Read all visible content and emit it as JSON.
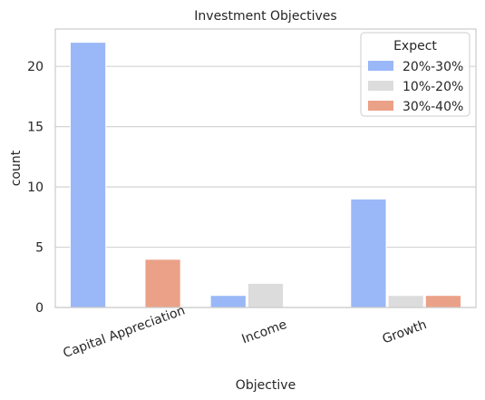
{
  "chart_data": {
    "type": "bar",
    "title": "Investment Objectives",
    "xlabel": "Objective",
    "ylabel": "count",
    "categories": [
      "Capital Appreciation",
      "Income",
      "Growth"
    ],
    "series": [
      {
        "name": "20%-30%",
        "values": [
          22,
          1,
          9
        ],
        "color": "#9ab8f7"
      },
      {
        "name": "10%-20%",
        "values": [
          0,
          2,
          1
        ],
        "color": "#dcdcdc"
      },
      {
        "name": "30%-40%",
        "values": [
          4,
          0,
          1
        ],
        "color": "#eba187"
      }
    ],
    "legend_title": "Expect",
    "legend_position": "top-right",
    "ylim": [
      0,
      23.1
    ],
    "yticks": [
      0,
      5,
      10,
      15,
      20
    ],
    "grid": "horizontal",
    "xtick_rotation_deg": -20
  }
}
